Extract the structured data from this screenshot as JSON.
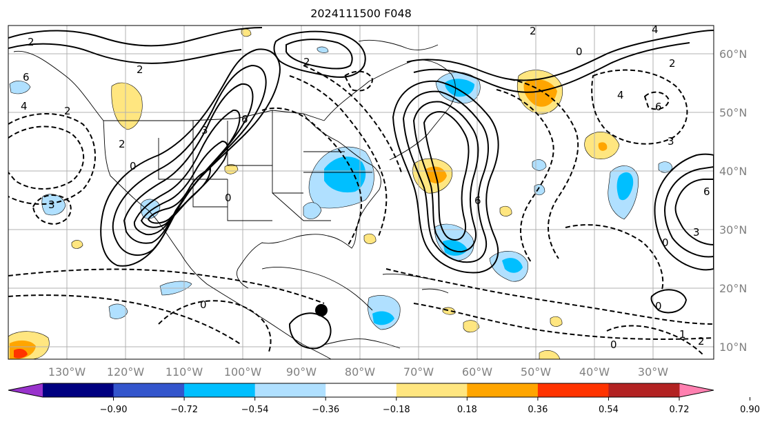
{
  "title": "2024111500 F048",
  "lon_ticks": [
    "130°W",
    "120°W",
    "110°W",
    "100°W",
    "90°W",
    "80°W",
    "70°W",
    "60°W",
    "50°W",
    "40°W",
    "30°W"
  ],
  "lat_ticks": [
    "60°N",
    "50°N",
    "40°N",
    "30°N",
    "20°N",
    "10°N"
  ],
  "colorbar": {
    "ticks": [
      "−0.90",
      "−0.72",
      "−0.54",
      "−0.36",
      "−0.18",
      "0.18",
      "0.36",
      "0.54",
      "0.72",
      "0.90"
    ],
    "colors": [
      "#9933cc",
      "#000080",
      "#3355cc",
      "#00bfff",
      "#b0e0ff",
      "#ffffff",
      "#ffe680",
      "#ffa500",
      "#ff3300",
      "#b22222",
      "#ff80b0"
    ]
  },
  "contour_labels": [
    "2",
    "2",
    "6",
    "4",
    "2",
    "0",
    "3",
    "2",
    "6",
    "2",
    "0",
    "3",
    "0",
    "6",
    "4",
    "3",
    "0",
    "2",
    "2",
    "4",
    "6",
    "0",
    "0",
    "0",
    "2",
    "1",
    "3",
    "6"
  ],
  "marker": "black-dot"
}
